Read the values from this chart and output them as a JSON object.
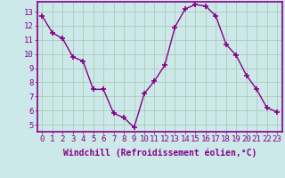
{
  "x": [
    0,
    1,
    2,
    3,
    4,
    5,
    6,
    7,
    8,
    9,
    10,
    11,
    12,
    13,
    14,
    15,
    16,
    17,
    18,
    19,
    20,
    21,
    22,
    23
  ],
  "y": [
    12.7,
    11.5,
    11.1,
    9.8,
    9.5,
    7.5,
    7.5,
    5.8,
    5.5,
    4.8,
    7.2,
    8.1,
    9.2,
    11.9,
    13.2,
    13.5,
    13.4,
    12.7,
    10.7,
    9.9,
    8.5,
    7.5,
    6.2,
    5.9
  ],
  "xlabel": "Windchill (Refroidissement éolien,°C)",
  "xlim": [
    -0.5,
    23.5
  ],
  "ylim": [
    4.5,
    13.7
  ],
  "yticks": [
    5,
    6,
    7,
    8,
    9,
    10,
    11,
    12,
    13
  ],
  "xticks": [
    0,
    1,
    2,
    3,
    4,
    5,
    6,
    7,
    8,
    9,
    10,
    11,
    12,
    13,
    14,
    15,
    16,
    17,
    18,
    19,
    20,
    21,
    22,
    23
  ],
  "line_color": "#880088",
  "marker": "+",
  "marker_size": 4,
  "marker_lw": 1.2,
  "line_width": 1.0,
  "bg_color": "#cce8e8",
  "grid_color": "#aaccbb",
  "label_color": "#880088",
  "tick_color": "#880088",
  "spine_color": "#880088",
  "xlabel_fontsize": 7.0,
  "tick_fontsize": 6.5,
  "figsize": [
    3.2,
    2.0
  ],
  "dpi": 100
}
